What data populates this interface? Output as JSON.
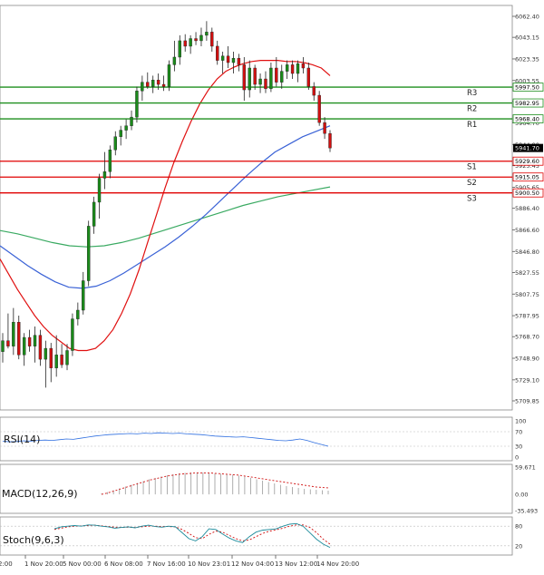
{
  "chart_data": [
    {
      "type": "candlestick",
      "panel": "price",
      "y_ticks": [
        "6062.40",
        "6043.15",
        "6023.35",
        "6003.55",
        "5984.50",
        "5964.70",
        "5944.90",
        "5925.45",
        "5905.65",
        "5886.40",
        "5866.60",
        "5846.80",
        "5827.55",
        "5807.75",
        "5787.95",
        "5768.70",
        "5748.90",
        "5729.10",
        "5709.85"
      ],
      "ylim": [
        5709.85,
        6062.4
      ],
      "x_ticks": [
        "1 Nov 20:00",
        "5 Nov 00:00",
        "6 Nov 08:00",
        "7 Nov 16:00",
        "10 Nov 23:01",
        "12 Nov 04:00",
        "13 Nov 12:00",
        "14 Nov 20:00"
      ],
      "x_tick_first_partial": "2:00",
      "current_price": "5941.70",
      "levels": [
        {
          "name": "R3",
          "value": 5997.5,
          "label": "5997.50",
          "color": "#1f8f1f"
        },
        {
          "name": "R2",
          "value": 5982.95,
          "label": "5982.95",
          "color": "#1f8f1f"
        },
        {
          "name": "R1",
          "value": 5968.4,
          "label": "5968.40",
          "color": "#1f8f1f"
        },
        {
          "name": "S1",
          "value": 5929.6,
          "label": "5929.60",
          "color": "#e00000"
        },
        {
          "name": "S2",
          "value": 5915.05,
          "label": "5915.05",
          "color": "#e00000"
        },
        {
          "name": "S3",
          "value": 5900.5,
          "label": "5900.50",
          "color": "#e00000"
        }
      ],
      "candles": [
        {
          "o": 5755,
          "h": 5772,
          "l": 5745,
          "c": 5765
        },
        {
          "o": 5765,
          "h": 5790,
          "l": 5758,
          "c": 5760
        },
        {
          "o": 5760,
          "h": 5795,
          "l": 5752,
          "c": 5782
        },
        {
          "o": 5782,
          "h": 5788,
          "l": 5748,
          "c": 5752
        },
        {
          "o": 5752,
          "h": 5772,
          "l": 5742,
          "c": 5768
        },
        {
          "o": 5768,
          "h": 5775,
          "l": 5755,
          "c": 5760
        },
        {
          "o": 5760,
          "h": 5778,
          "l": 5745,
          "c": 5770
        },
        {
          "o": 5770,
          "h": 5775,
          "l": 5742,
          "c": 5748
        },
        {
          "o": 5748,
          "h": 5765,
          "l": 5722,
          "c": 5758
        },
        {
          "o": 5758,
          "h": 5763,
          "l": 5727,
          "c": 5740
        },
        {
          "o": 5740,
          "h": 5770,
          "l": 5732,
          "c": 5752
        },
        {
          "o": 5752,
          "h": 5762,
          "l": 5740,
          "c": 5743
        },
        {
          "o": 5743,
          "h": 5762,
          "l": 5738,
          "c": 5756
        },
        {
          "o": 5756,
          "h": 5790,
          "l": 5751,
          "c": 5785
        },
        {
          "o": 5785,
          "h": 5800,
          "l": 5779,
          "c": 5793
        },
        {
          "o": 5793,
          "h": 5828,
          "l": 5789,
          "c": 5820
        },
        {
          "o": 5820,
          "h": 5875,
          "l": 5815,
          "c": 5870
        },
        {
          "o": 5870,
          "h": 5897,
          "l": 5863,
          "c": 5892
        },
        {
          "o": 5892,
          "h": 5918,
          "l": 5877,
          "c": 5914
        },
        {
          "o": 5914,
          "h": 5938,
          "l": 5904,
          "c": 5920
        },
        {
          "o": 5920,
          "h": 5944,
          "l": 5914,
          "c": 5940
        },
        {
          "o": 5940,
          "h": 5957,
          "l": 5935,
          "c": 5952
        },
        {
          "o": 5952,
          "h": 5962,
          "l": 5944,
          "c": 5958
        },
        {
          "o": 5958,
          "h": 5968,
          "l": 5950,
          "c": 5962
        },
        {
          "o": 5962,
          "h": 5976,
          "l": 5958,
          "c": 5970
        },
        {
          "o": 5970,
          "h": 5998,
          "l": 5965,
          "c": 5994
        },
        {
          "o": 5994,
          "h": 6008,
          "l": 5985,
          "c": 6002
        },
        {
          "o": 6002,
          "h": 6011,
          "l": 5996,
          "c": 5998
        },
        {
          "o": 5998,
          "h": 6008,
          "l": 5992,
          "c": 6004
        },
        {
          "o": 6004,
          "h": 6010,
          "l": 5995,
          "c": 6000
        },
        {
          "o": 6000,
          "h": 6008,
          "l": 5994,
          "c": 5998
        },
        {
          "o": 5998,
          "h": 6022,
          "l": 5994,
          "c": 6018
        },
        {
          "o": 6018,
          "h": 6040,
          "l": 6012,
          "c": 6025
        },
        {
          "o": 6025,
          "h": 6045,
          "l": 6018,
          "c": 6040
        },
        {
          "o": 6040,
          "h": 6046,
          "l": 6030,
          "c": 6035
        },
        {
          "o": 6035,
          "h": 6045,
          "l": 6028,
          "c": 6042
        },
        {
          "o": 6042,
          "h": 6048,
          "l": 6036,
          "c": 6040
        },
        {
          "o": 6040,
          "h": 6052,
          "l": 6035,
          "c": 6045
        },
        {
          "o": 6045,
          "h": 6058,
          "l": 6040,
          "c": 6048
        },
        {
          "o": 6048,
          "h": 6052,
          "l": 6030,
          "c": 6035
        },
        {
          "o": 6035,
          "h": 6040,
          "l": 6018,
          "c": 6022
        },
        {
          "o": 6022,
          "h": 6030,
          "l": 6010,
          "c": 6026
        },
        {
          "o": 6026,
          "h": 6035,
          "l": 6015,
          "c": 6020
        },
        {
          "o": 6020,
          "h": 6030,
          "l": 6010,
          "c": 6024
        },
        {
          "o": 6024,
          "h": 6028,
          "l": 6012,
          "c": 6018
        },
        {
          "o": 6018,
          "h": 6025,
          "l": 5985,
          "c": 5995
        },
        {
          "o": 5995,
          "h": 6022,
          "l": 5988,
          "c": 6015
        },
        {
          "o": 6015,
          "h": 6018,
          "l": 5995,
          "c": 6000
        },
        {
          "o": 6000,
          "h": 6010,
          "l": 5992,
          "c": 6005
        },
        {
          "o": 6005,
          "h": 6012,
          "l": 5992,
          "c": 5996
        },
        {
          "o": 5996,
          "h": 6020,
          "l": 5993,
          "c": 6015
        },
        {
          "o": 6015,
          "h": 6025,
          "l": 5998,
          "c": 6002
        },
        {
          "o": 6002,
          "h": 6018,
          "l": 5996,
          "c": 6012
        },
        {
          "o": 6012,
          "h": 6022,
          "l": 6005,
          "c": 6018
        },
        {
          "o": 6018,
          "h": 6022,
          "l": 6005,
          "c": 6010
        },
        {
          "o": 6010,
          "h": 6022,
          "l": 6002,
          "c": 6019
        },
        {
          "o": 6019,
          "h": 6025,
          "l": 6010,
          "c": 6015
        },
        {
          "o": 6015,
          "h": 6020,
          "l": 5995,
          "c": 5998
        },
        {
          "o": 5998,
          "h": 6002,
          "l": 5985,
          "c": 5990
        },
        {
          "o": 5990,
          "h": 5994,
          "l": 5962,
          "c": 5965
        },
        {
          "o": 5965,
          "h": 5970,
          "l": 5950,
          "c": 5955
        },
        {
          "o": 5955,
          "h": 5958,
          "l": 5938,
          "c": 5941.7
        }
      ],
      "ma_red": [
        5840,
        5826,
        5812,
        5800,
        5788,
        5778,
        5770,
        5764,
        5758,
        5756,
        5756,
        5758,
        5765,
        5775,
        5790,
        5808,
        5830,
        5855,
        5880,
        5905,
        5928,
        5948,
        5966,
        5982,
        5995,
        6005,
        6012,
        6016,
        6019,
        6021,
        6022,
        6022,
        6022,
        6021,
        6021,
        6020,
        6018,
        6015,
        6008
      ],
      "ma_blue": [
        5852,
        5843,
        5834,
        5826,
        5819,
        5814,
        5813,
        5815,
        5820,
        5827,
        5835,
        5843,
        5851,
        5860,
        5870,
        5881,
        5893,
        5905,
        5917,
        5928,
        5938,
        5945,
        5952,
        5957,
        5962
      ],
      "ma_green": [
        5866,
        5863,
        5859,
        5855,
        5852,
        5851,
        5852,
        5855,
        5859,
        5864,
        5869,
        5874,
        5879,
        5884,
        5889,
        5893,
        5897,
        5900,
        5903,
        5906
      ],
      "series": [
        {
          "name": "",
          "color": "#e01010"
        },
        {
          "name": "",
          "color": "#3a62d6"
        },
        {
          "name": "",
          "color": "#3aaa62"
        }
      ]
    },
    {
      "type": "line",
      "panel": "rsi",
      "label": "RSI(14)",
      "ylim": [
        0,
        100
      ],
      "y_ticks": [
        "100",
        "70",
        "30",
        "0"
      ],
      "values": [
        44,
        42,
        43,
        45,
        44,
        46,
        47,
        46,
        48,
        50,
        49,
        52,
        55,
        58,
        60,
        62,
        63,
        64,
        65,
        64,
        66,
        65,
        67,
        66,
        65,
        66,
        64,
        63,
        62,
        60,
        58,
        57,
        56,
        55,
        56,
        54,
        52,
        50,
        48,
        46,
        45,
        47,
        50,
        46,
        40,
        35,
        30
      ]
    },
    {
      "type": "bar",
      "panel": "macd",
      "label": "MACD(12,26,9)",
      "ylim": [
        -35.493,
        59.671
      ],
      "y_ticks": [
        "59.671",
        "0.00",
        "-35.493"
      ],
      "histogram": [
        2,
        5,
        9,
        13,
        17,
        21,
        25,
        29,
        33,
        36,
        39,
        42,
        44,
        46,
        47,
        48,
        48,
        48,
        47,
        46,
        45,
        44,
        43,
        41,
        39,
        36,
        33,
        30,
        27,
        24,
        21,
        18,
        16,
        14,
        12,
        11,
        10,
        9,
        8
      ],
      "signal": [
        0,
        3,
        7,
        11,
        15,
        19,
        23,
        27,
        31,
        34,
        37,
        40,
        42,
        44,
        45,
        46,
        47,
        47,
        47,
        46,
        45,
        44,
        43,
        42,
        40,
        38,
        36,
        34,
        32,
        30,
        28,
        26,
        24,
        22,
        20,
        18,
        16,
        15,
        14
      ]
    },
    {
      "type": "line",
      "panel": "stoch",
      "label": "Stoch(9,6,3)",
      "ylim": [
        0,
        100
      ],
      "y_ticks": [
        "80",
        "20"
      ],
      "k": [
        72,
        78,
        80,
        82,
        80,
        84,
        83,
        80,
        78,
        74,
        76,
        78,
        75,
        80,
        83,
        79,
        77,
        80,
        78,
        60,
        42,
        35,
        48,
        72,
        70,
        56,
        44,
        35,
        30,
        48,
        62,
        68,
        70,
        72,
        80,
        86,
        88,
        80,
        60,
        40,
        25,
        15
      ],
      "d": [
        70,
        74,
        78,
        80,
        81,
        82,
        83,
        81,
        79,
        77,
        76,
        77,
        76,
        78,
        80,
        80,
        79,
        79,
        78,
        70,
        58,
        45,
        42,
        55,
        65,
        62,
        52,
        42,
        35,
        38,
        48,
        58,
        65,
        69,
        74,
        80,
        84,
        84,
        76,
        60,
        40,
        25
      ]
    }
  ]
}
